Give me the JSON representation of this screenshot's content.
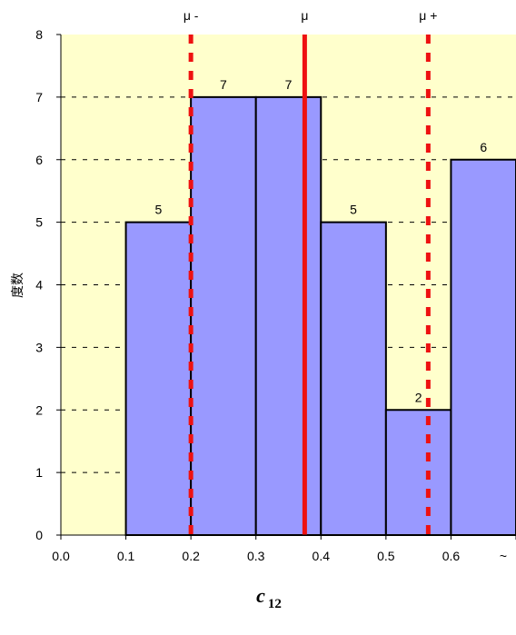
{
  "chart_data": {
    "type": "bar",
    "subtype": "histogram",
    "bins": [
      {
        "x0": 0.1,
        "x1": 0.2,
        "value": 5,
        "label": "5"
      },
      {
        "x0": 0.2,
        "x1": 0.3,
        "value": 7,
        "label": "7"
      },
      {
        "x0": 0.3,
        "x1": 0.4,
        "value": 7,
        "label": "7"
      },
      {
        "x0": 0.4,
        "x1": 0.5,
        "value": 5,
        "label": "5"
      },
      {
        "x0": 0.5,
        "x1": 0.6,
        "value": 2,
        "label": "2"
      },
      {
        "x0": 0.6,
        "x1": 0.7,
        "value": 6,
        "label": "6"
      }
    ],
    "x_ticks": [
      "0.0",
      "0.1",
      "0.2",
      "0.3",
      "0.4",
      "0.5",
      "0.6",
      "~"
    ],
    "y_ticks": [
      "0",
      "1",
      "2",
      "3",
      "4",
      "5",
      "6",
      "7",
      "8"
    ],
    "xlim": [
      0.0,
      0.7
    ],
    "ylim": [
      0,
      8
    ],
    "xlabel": "c",
    "xlabel_subscript": "12",
    "ylabel": "度数",
    "reference_lines": [
      {
        "label": "μ -",
        "x": 0.2,
        "style": "dashed",
        "color": "#ee1111"
      },
      {
        "label": "μ",
        "x": 0.375,
        "style": "solid",
        "color": "#ee1111"
      },
      {
        "label": "μ +",
        "x": 0.565,
        "style": "dashed",
        "color": "#ee1111"
      }
    ],
    "grid": "dashed horizontal",
    "legend": "none",
    "colors": {
      "plot_background": "#ffffcc",
      "bar_fill": "#9999ff",
      "bar_stroke": "#000000",
      "reference_line": "#ee1111"
    }
  }
}
